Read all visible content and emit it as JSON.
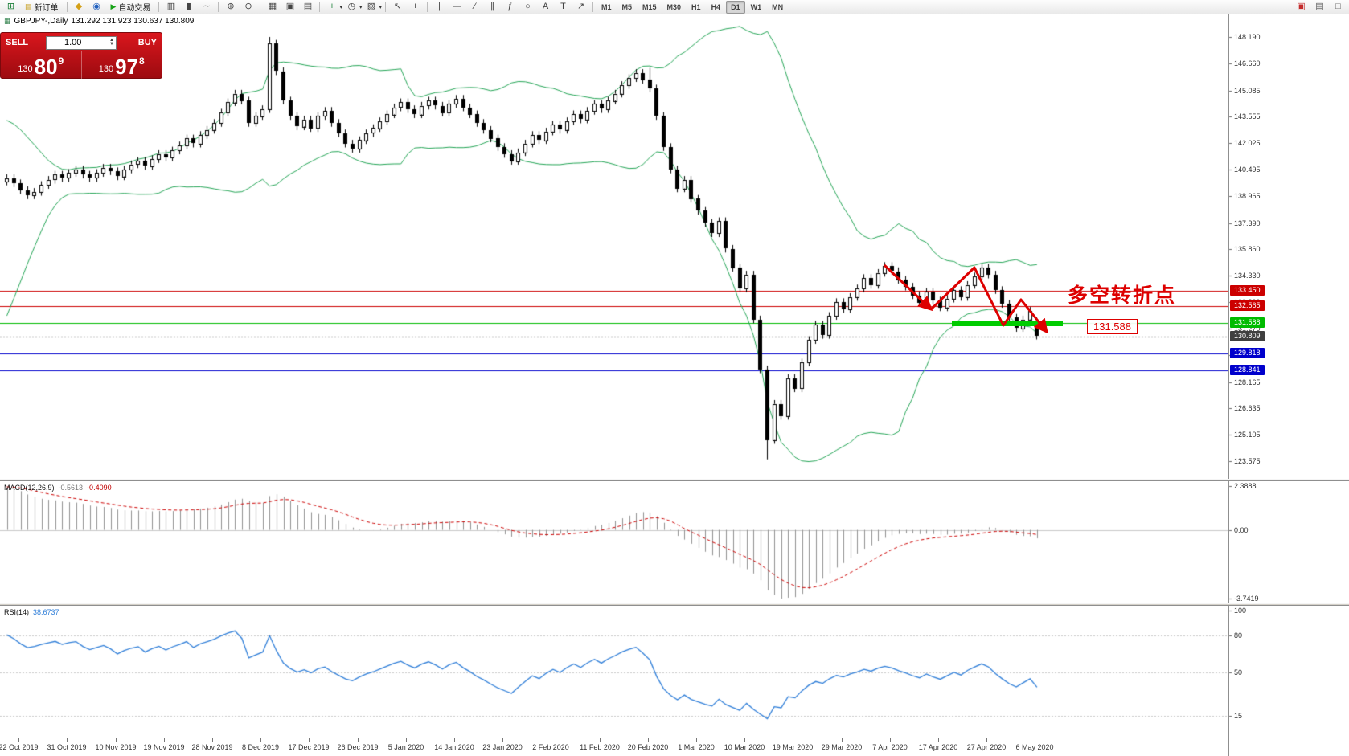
{
  "toolbar": {
    "new_order_label": "新订单",
    "autotrade_label": "自动交易",
    "items_left": [
      {
        "name": "new-chart-icon",
        "glyph": "⊞",
        "color": "#1a7f37"
      },
      {
        "name": "new-order-button",
        "type": "button",
        "glyph": "▤",
        "color": "#c9a227",
        "label_key": "new_order_label"
      },
      {
        "name": "sep"
      },
      {
        "name": "profile-icon",
        "glyph": "◆",
        "color": "#d4a017"
      },
      {
        "name": "market-watch-icon",
        "glyph": "◉",
        "color": "#1f5fbf"
      },
      {
        "name": "autotrade-button",
        "type": "button",
        "glyph": "▶",
        "color": "#18a318",
        "label_key": "autotrade_label"
      },
      {
        "name": "sep"
      },
      {
        "name": "bar-chart-icon",
        "glyph": "▥",
        "color": "#444444"
      },
      {
        "name": "candlestick-chart-icon",
        "glyph": "▮",
        "color": "#444444"
      },
      {
        "name": "line-chart-icon",
        "glyph": "∼",
        "color": "#444444"
      },
      {
        "name": "sep"
      },
      {
        "name": "zoom-in-icon",
        "glyph": "⊕",
        "color": "#444444"
      },
      {
        "name": "zoom-out-icon",
        "glyph": "⊖",
        "color": "#444444"
      },
      {
        "name": "sep"
      },
      {
        "name": "tile-windows-icon",
        "glyph": "▦",
        "color": "#444444"
      },
      {
        "name": "cascade-windows-icon",
        "glyph": "▣",
        "color": "#444444"
      },
      {
        "name": "arrange-windows-icon",
        "glyph": "▤",
        "color": "#444444"
      },
      {
        "name": "sep"
      },
      {
        "name": "indicators-icon",
        "glyph": "+",
        "color": "#1a7f37",
        "dropdown": true
      },
      {
        "name": "periods-icon",
        "glyph": "◷",
        "color": "#444444",
        "dropdown": true
      },
      {
        "name": "templates-icon",
        "glyph": "▧",
        "color": "#444444",
        "dropdown": true
      },
      {
        "name": "sep"
      },
      {
        "name": "cursor-icon",
        "glyph": "↖",
        "color": "#444444"
      },
      {
        "name": "crosshair-icon",
        "glyph": "+",
        "color": "#444444"
      },
      {
        "name": "sep"
      },
      {
        "name": "vertical-line-icon",
        "glyph": "|",
        "color": "#444444"
      },
      {
        "name": "horizontal-line-icon",
        "glyph": "—",
        "color": "#444444"
      },
      {
        "name": "trendline-icon",
        "glyph": "∕",
        "color": "#444444"
      },
      {
        "name": "channel-icon",
        "glyph": "∥",
        "color": "#444444"
      },
      {
        "name": "fibonacci-icon",
        "glyph": "ƒ",
        "color": "#444444"
      },
      {
        "name": "shapes-icon",
        "glyph": "○",
        "color": "#444444"
      },
      {
        "name": "text-icon",
        "glyph": "A",
        "color": "#444444"
      },
      {
        "name": "label-icon",
        "glyph": "T",
        "color": "#444444"
      },
      {
        "name": "arrow-tools-icon",
        "glyph": "↗",
        "color": "#444444"
      },
      {
        "name": "sep"
      }
    ],
    "timeframes": [
      "M1",
      "M5",
      "M15",
      "M30",
      "H1",
      "H4",
      "D1",
      "W1",
      "MN"
    ],
    "active_timeframe": "D1",
    "items_right": [
      {
        "name": "news-icon",
        "glyph": "▣",
        "color": "#c42b2b"
      },
      {
        "name": "data-window-icon",
        "glyph": "▤",
        "color": "#555555"
      },
      {
        "name": "full-screen-icon",
        "glyph": "□",
        "color": "#555555"
      }
    ]
  },
  "chart": {
    "window_title": {
      "symbol_period": "GBPJPY-,Daily",
      "ohlc": "131.292 131.923 130.637 130.809"
    },
    "trade_widget": {
      "sell_label": "SELL",
      "buy_label": "BUY",
      "volume": "1.00",
      "sell_price": {
        "small": "130",
        "big": "80",
        "sup": "9"
      },
      "buy_price": {
        "small": "130",
        "big": "97",
        "sup": "8"
      }
    },
    "price_axis_ticks": [
      "148.190",
      "146.660",
      "145.085",
      "143.555",
      "142.025",
      "140.495",
      "138.965",
      "137.390",
      "135.860",
      "134.330",
      "132.800",
      "131.270",
      "129.740",
      "128.165",
      "126.635",
      "125.105",
      "123.575"
    ],
    "levels": [
      {
        "text": "133.450",
        "value": 133.45,
        "color": "#cc0000",
        "line": "solid"
      },
      {
        "text": "132.565",
        "value": 132.565,
        "color": "#cc0000",
        "line": "solid"
      },
      {
        "text": "131.588",
        "value": 131.588,
        "color": "#00bb00",
        "line": "solid"
      },
      {
        "text": "130.809",
        "value": 130.809,
        "color": "#3f3f3f",
        "line": "dotted"
      },
      {
        "text": "129.818",
        "value": 129.818,
        "color": "#0000cc",
        "line": "solid"
      },
      {
        "text": "128.841",
        "value": 128.841,
        "color": "#0000cc",
        "line": "solid"
      }
    ],
    "annotations": {
      "turning_point_text": "多空转折点",
      "level_box_text": "131.588",
      "green_segment": {
        "price": 131.588,
        "from_index": 137,
        "to_index": 153
      }
    }
  },
  "macd_panel": {
    "label": "MACD(12,26,9)",
    "value_main": "-0.5613",
    "value_signal": "-0.4090",
    "axis_labels": [
      "2.3888",
      "0.00",
      "-3.7419"
    ],
    "axis_values": [
      2.3888,
      0,
      -3.7419
    ],
    "histogram_color": "#909090",
    "signal_color": "#cc0000"
  },
  "rsi_panel": {
    "label": "RSI(14)",
    "value": "38.6737",
    "axis_labels": [
      "100",
      "80",
      "50",
      "15"
    ],
    "axis_values": [
      100,
      80,
      50,
      15
    ],
    "levels": [
      80,
      50,
      15
    ],
    "line_color": "#2f7ed8"
  },
  "time_axis": {
    "first_index": 2,
    "step": 7,
    "labels": [
      "22 Oct 2019",
      "31 Oct 2019",
      "10 Nov 2019",
      "19 Nov 2019",
      "28 Nov 2019",
      "8 Dec 2019",
      "17 Dec 2019",
      "26 Dec 2019",
      "5 Jan 2020",
      "14 Jan 2020",
      "23 Jan 2020",
      "2 Feb 2020",
      "11 Feb 2020",
      "20 Feb 2020",
      "1 Mar 2020",
      "10 Mar 2020",
      "19 Mar 2020",
      "29 Mar 2020",
      "7 Apr 2020",
      "17 Apr 2020",
      "27 Apr 2020",
      "6 May 2020"
    ]
  },
  "chart_data": {
    "type": "candlestick+indicators",
    "symbol": "GBPJPY",
    "period": "Daily",
    "bollinger": {
      "period": 20,
      "deviation": 2,
      "color": "#23a455"
    },
    "wick": 0.22,
    "preroll_closes": [
      132.6,
      131.9,
      132.5,
      133.1,
      134.0,
      134.8,
      135.7,
      136.9,
      137.8,
      138.6,
      139.3,
      140.0,
      139.6,
      140.2,
      139.8,
      140.1,
      139.9,
      139.6,
      140.0,
      139.8
    ],
    "closes": [
      140.0,
      139.7,
      139.3,
      139.0,
      139.2,
      139.6,
      139.9,
      140.2,
      140.0,
      140.3,
      140.5,
      140.2,
      140.0,
      140.3,
      140.6,
      140.4,
      140.1,
      140.5,
      140.8,
      141.0,
      140.7,
      141.1,
      141.4,
      141.2,
      141.6,
      141.9,
      142.3,
      142.0,
      142.5,
      142.8,
      143.2,
      143.8,
      144.4,
      144.9,
      144.5,
      143.2,
      143.6,
      144.0,
      147.8,
      146.2,
      144.5,
      143.6,
      143.0,
      143.4,
      142.9,
      143.6,
      143.9,
      143.2,
      142.6,
      142.0,
      141.7,
      142.2,
      142.6,
      142.9,
      143.3,
      143.7,
      144.1,
      144.4,
      144.0,
      143.7,
      144.2,
      144.5,
      144.2,
      143.8,
      144.3,
      144.6,
      144.1,
      143.7,
      143.2,
      142.8,
      142.3,
      141.8,
      141.4,
      141.0,
      141.5,
      142.0,
      142.5,
      142.2,
      142.7,
      143.1,
      142.8,
      143.3,
      143.7,
      143.4,
      143.9,
      144.3,
      144.0,
      144.5,
      144.9,
      145.4,
      145.8,
      146.1,
      145.7,
      145.2,
      143.6,
      141.8,
      140.5,
      139.4,
      139.9,
      138.8,
      138.1,
      137.4,
      136.8,
      137.5,
      135.9,
      134.8,
      133.6,
      134.4,
      131.8,
      128.9,
      124.8,
      126.9,
      126.2,
      128.4,
      127.8,
      129.3,
      130.6,
      131.5,
      130.9,
      132.0,
      132.8,
      132.4,
      133.1,
      133.6,
      134.2,
      133.8,
      134.5,
      134.9,
      134.6,
      134.1,
      133.7,
      133.2,
      132.8,
      133.4,
      132.9,
      132.5,
      133.0,
      133.5,
      133.1,
      133.8,
      134.3,
      134.8,
      134.4,
      133.5,
      132.7,
      131.9,
      131.3,
      131.8,
      132.3,
      130.809
    ],
    "overrides": {
      "38": {
        "h": 148.19
      },
      "93": {
        "h": 146.4
      },
      "110": {
        "l": 123.68
      },
      "149": {
        "o": 131.292,
        "h": 131.923,
        "l": 130.637,
        "c": 130.809
      }
    }
  }
}
